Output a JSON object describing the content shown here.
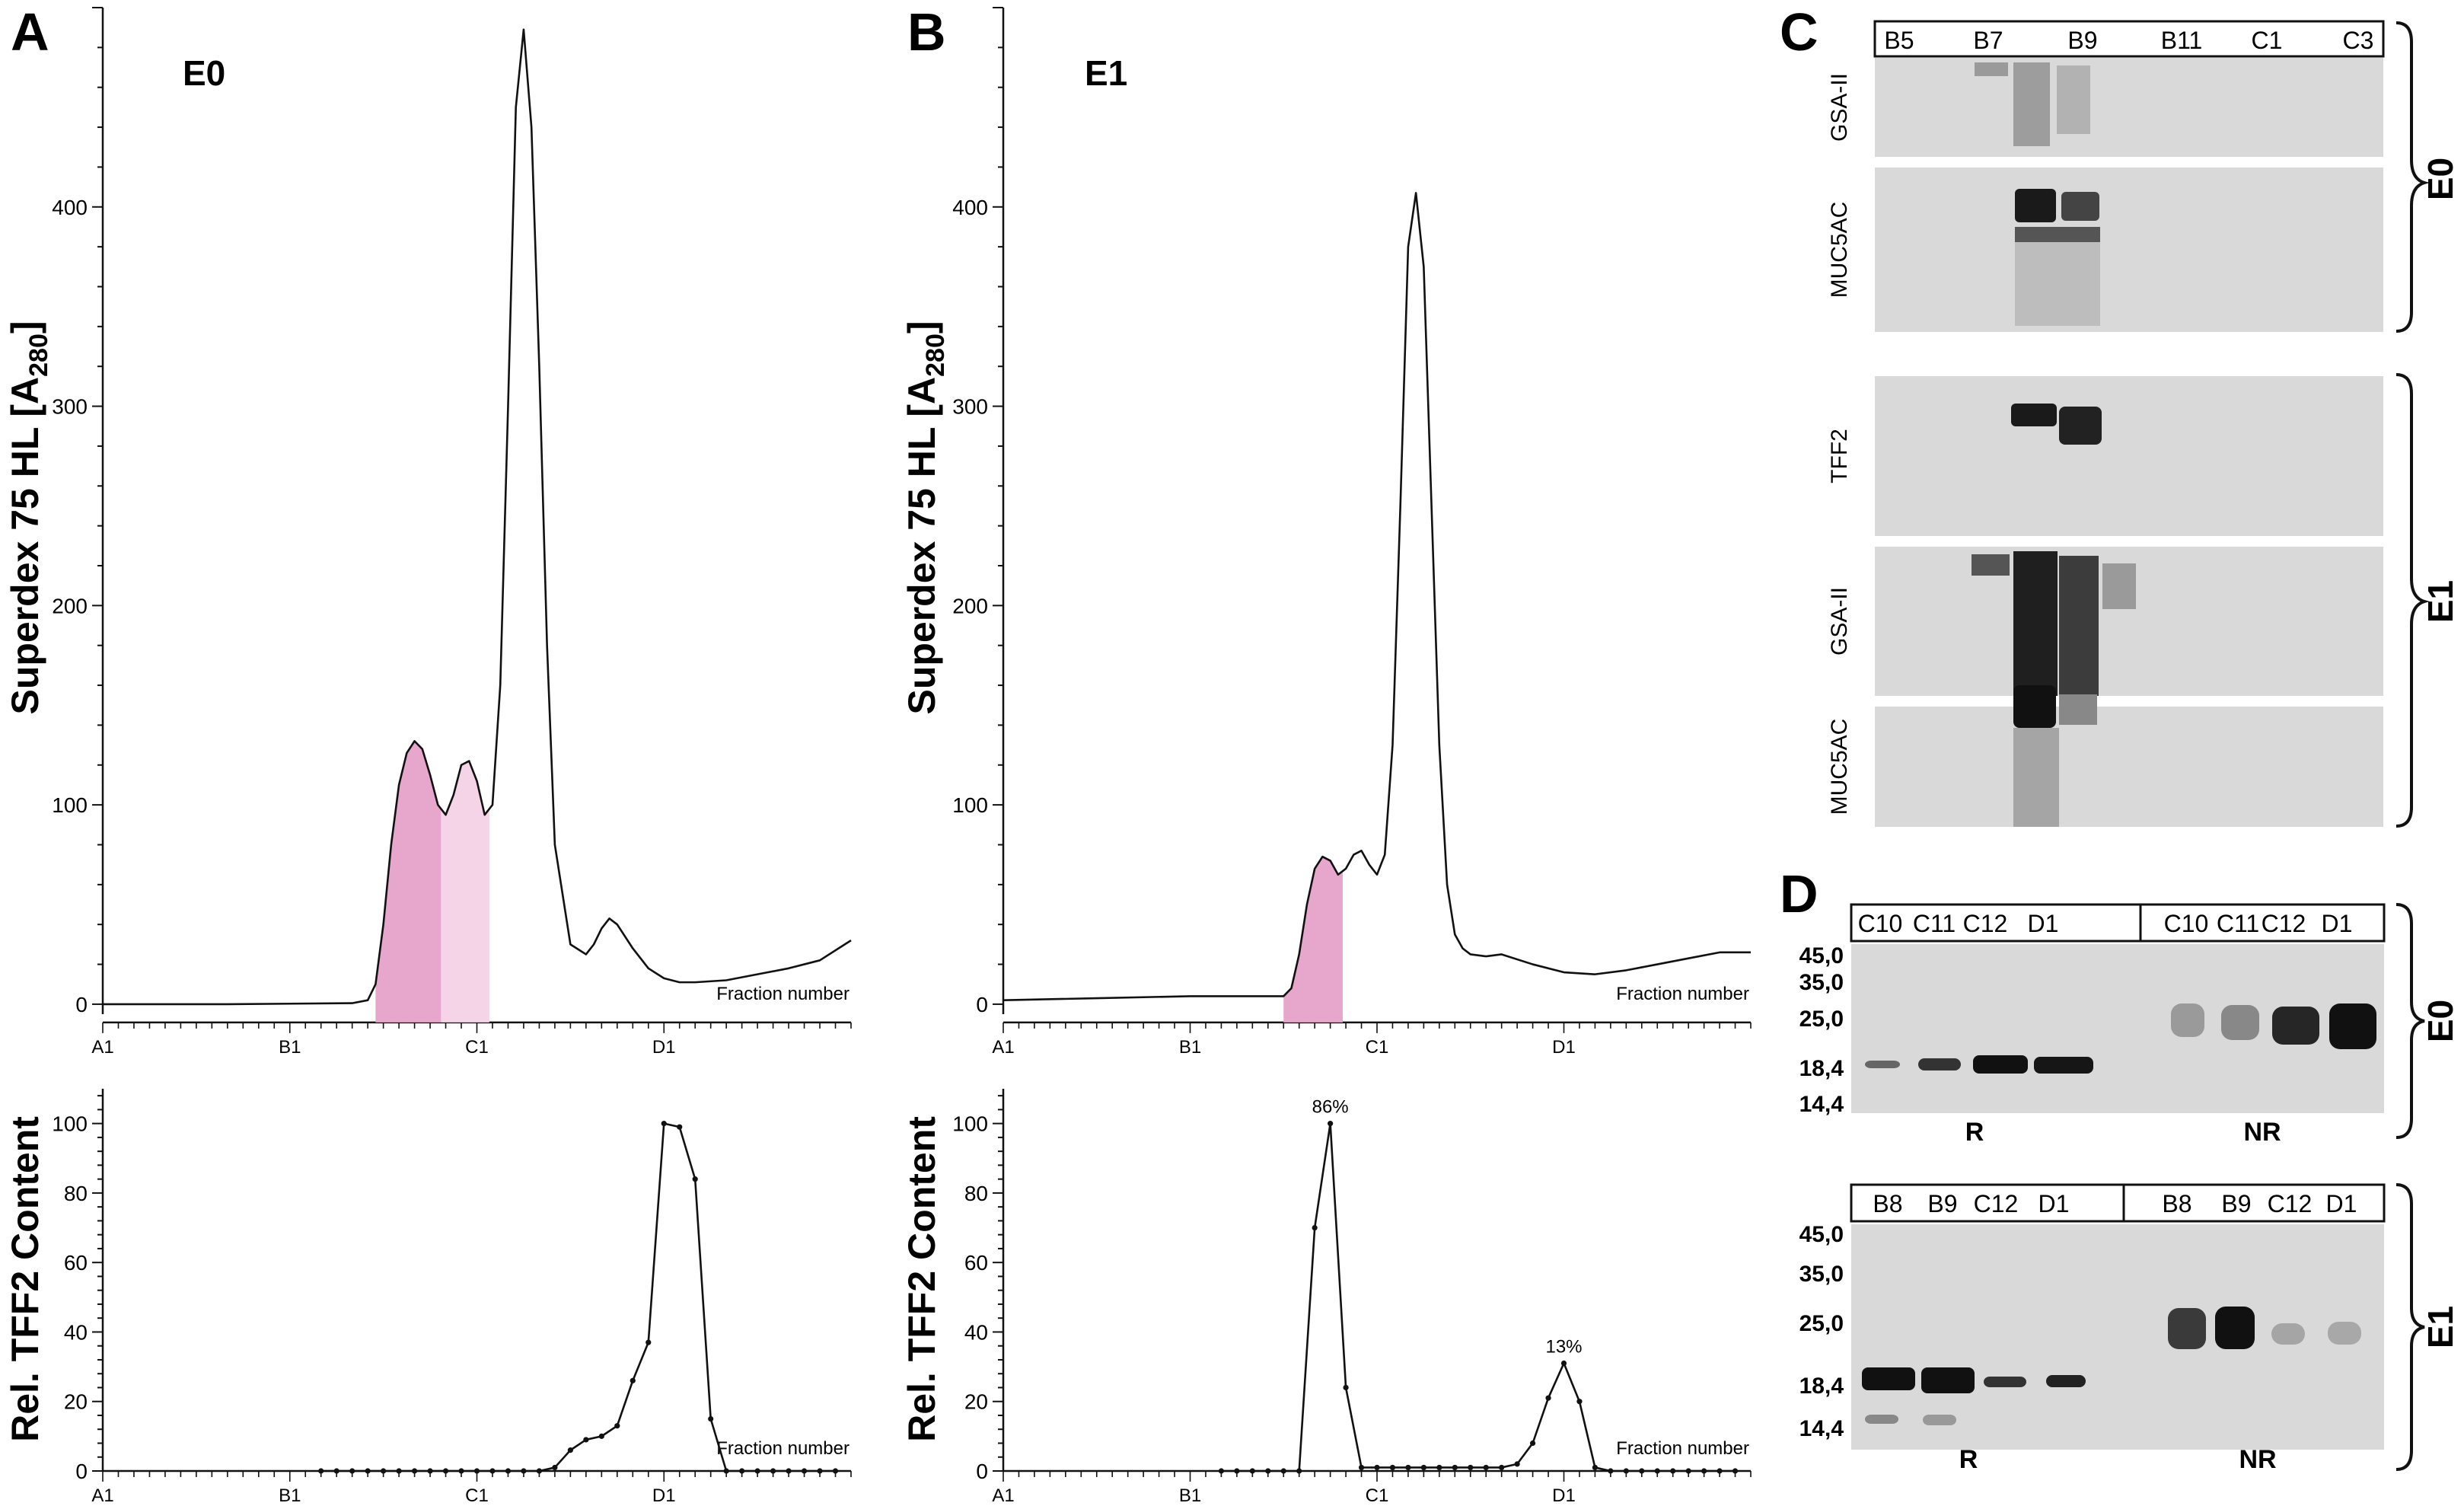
{
  "colors": {
    "line": "#111111",
    "pink_dark": "#e7a7cc",
    "pink_light": "#f4d4e6",
    "blot_bg": "#d9d9d9",
    "band": "#1a1a1a"
  },
  "panels": {
    "A": {
      "letter": "A",
      "tag": "E0"
    },
    "B": {
      "letter": "B",
      "tag": "E1"
    },
    "C": {
      "letter": "C"
    },
    "D": {
      "letter": "D"
    }
  },
  "chart_data": [
    {
      "id": "A-top",
      "type": "line",
      "title": "E0",
      "ylabel": "Superdex 75 HL [A280]",
      "xlabel": "Fraction number",
      "x_tick_labels": [
        "A1",
        "B1",
        "C1",
        "D1"
      ],
      "x_tick_positions": [
        0,
        12,
        24,
        36
      ],
      "xlim": [
        0,
        48
      ],
      "ylim": [
        -5,
        500
      ],
      "y_ticks": [
        0,
        100,
        200,
        300,
        400
      ],
      "x": [
        0,
        8,
        16,
        17,
        17.5,
        18,
        18.5,
        19,
        19.5,
        20,
        20.5,
        21,
        21.5,
        22,
        22.5,
        23,
        23.5,
        24,
        24.5,
        25,
        25.5,
        26,
        26.5,
        27,
        27.5,
        28,
        28.5,
        29,
        30,
        31,
        31.5,
        32,
        32.5,
        33,
        34,
        35,
        36,
        37,
        38,
        40,
        42,
        44,
        46,
        48
      ],
      "y": [
        0,
        0,
        0.5,
        2,
        10,
        40,
        80,
        110,
        126,
        132,
        128,
        115,
        100,
        95,
        105,
        120,
        122,
        112,
        95,
        100,
        160,
        300,
        450,
        489,
        440,
        320,
        180,
        80,
        30,
        25,
        30,
        38,
        43,
        40,
        28,
        18,
        13,
        11,
        11,
        12,
        15,
        18,
        22,
        32
      ],
      "shaded": [
        {
          "range": [
            17.5,
            21.7
          ],
          "shade": "dark"
        },
        {
          "range": [
            21.7,
            24.8
          ],
          "shade": "light"
        }
      ]
    },
    {
      "id": "B-top",
      "type": "line",
      "title": "E1",
      "ylabel": "Superdex 75 HL [A280]",
      "xlabel": "Fraction number",
      "x_tick_labels": [
        "A1",
        "B1",
        "C1",
        "D1"
      ],
      "x_tick_positions": [
        0,
        12,
        24,
        36
      ],
      "xlim": [
        0,
        48
      ],
      "ylim": [
        -5,
        500
      ],
      "y_ticks": [
        0,
        100,
        200,
        300,
        400
      ],
      "x": [
        0,
        6,
        12,
        18,
        18.5,
        19,
        19.5,
        20,
        20.5,
        21,
        21.5,
        22,
        22.5,
        23,
        23.5,
        24,
        24.5,
        25,
        25.5,
        26,
        26.5,
        27,
        27.5,
        28,
        28.5,
        29,
        29.5,
        30,
        31,
        32,
        34,
        36,
        38,
        40,
        42,
        44,
        46,
        48
      ],
      "y": [
        2,
        3,
        4,
        4,
        8,
        25,
        50,
        68,
        74,
        72,
        65,
        68,
        75,
        77,
        70,
        65,
        75,
        130,
        250,
        380,
        407,
        370,
        250,
        130,
        60,
        35,
        28,
        25,
        24,
        25,
        20,
        16,
        15,
        17,
        20,
        23,
        26,
        26
      ],
      "shaded": [
        {
          "range": [
            18,
            21.8
          ],
          "shade": "dark"
        }
      ]
    },
    {
      "id": "A-bottom",
      "type": "line",
      "ylabel": "Rel. TFF2 Content",
      "xlabel": "Fraction number",
      "x_tick_labels": [
        "A1",
        "B1",
        "C1",
        "D1"
      ],
      "x_tick_positions": [
        0,
        12,
        24,
        36
      ],
      "xlim": [
        0,
        48
      ],
      "ylim": [
        0,
        110
      ],
      "y_ticks": [
        0,
        20,
        40,
        60,
        80,
        100
      ],
      "x": [
        14,
        15,
        16,
        17,
        18,
        19,
        20,
        21,
        22,
        23,
        24,
        25,
        26,
        27,
        28,
        29,
        30,
        31,
        32,
        33,
        34,
        35,
        36,
        37,
        38,
        39,
        40,
        41,
        42,
        43,
        44,
        45,
        46,
        47
      ],
      "y": [
        0,
        0,
        0,
        0,
        0,
        0,
        0,
        0,
        0,
        0,
        0,
        0,
        0,
        0,
        0,
        1,
        6,
        9,
        10,
        13,
        26,
        37,
        100,
        99,
        84,
        15,
        0,
        0,
        0,
        0,
        0,
        0,
        0,
        0
      ]
    },
    {
      "id": "B-bottom",
      "type": "line",
      "ylabel": "Rel. TFF2 Content",
      "xlabel": "Fraction number",
      "x_tick_labels": [
        "A1",
        "B1",
        "C1",
        "D1"
      ],
      "x_tick_positions": [
        0,
        12,
        24,
        36
      ],
      "xlim": [
        0,
        48
      ],
      "ylim": [
        0,
        110
      ],
      "y_ticks": [
        0,
        20,
        40,
        60,
        80,
        100
      ],
      "x": [
        14,
        15,
        16,
        17,
        18,
        19,
        20,
        21,
        22,
        23,
        24,
        25,
        26,
        27,
        28,
        29,
        30,
        31,
        32,
        33,
        34,
        35,
        36,
        37,
        38,
        39,
        40,
        41,
        42,
        43,
        44,
        45,
        46,
        47
      ],
      "y": [
        0,
        0,
        0,
        0,
        0,
        0,
        70,
        100,
        24,
        1,
        1,
        1,
        1,
        1,
        1,
        1,
        1,
        1,
        1,
        2,
        8,
        21,
        31,
        20,
        1,
        0,
        0,
        0,
        0,
        0,
        0,
        0,
        0,
        0
      ],
      "annotations": [
        {
          "text": "86%",
          "x": 21,
          "y": 100
        },
        {
          "text": "13%",
          "x": 36,
          "y": 31
        }
      ]
    }
  ],
  "blot_C": {
    "lanes": [
      "B5",
      "B7",
      "B9",
      "B11",
      "C1",
      "C3"
    ],
    "groups": [
      {
        "label": "E0",
        "rows": [
          "GSA-II",
          "MUC5AC"
        ]
      },
      {
        "label": "E1",
        "rows": [
          "TFF2",
          "GSA-II",
          "MUC5AC"
        ]
      }
    ]
  },
  "blot_D": {
    "markers": [
      "45,0",
      "35,0",
      "25,0",
      "18,4",
      "14,4"
    ],
    "groups": [
      {
        "label": "E0",
        "left_lanes": [
          "C10",
          "C11",
          "C12",
          "D1"
        ],
        "right_lanes": [
          "C10",
          "C11",
          "C12",
          "D1"
        ],
        "left_label": "R",
        "right_label": "NR"
      },
      {
        "label": "E1",
        "left_lanes": [
          "B8",
          "B9",
          "C12",
          "D1"
        ],
        "right_lanes": [
          "B8",
          "B9",
          "C12",
          "D1"
        ],
        "left_label": "R",
        "right_label": "NR"
      }
    ]
  }
}
